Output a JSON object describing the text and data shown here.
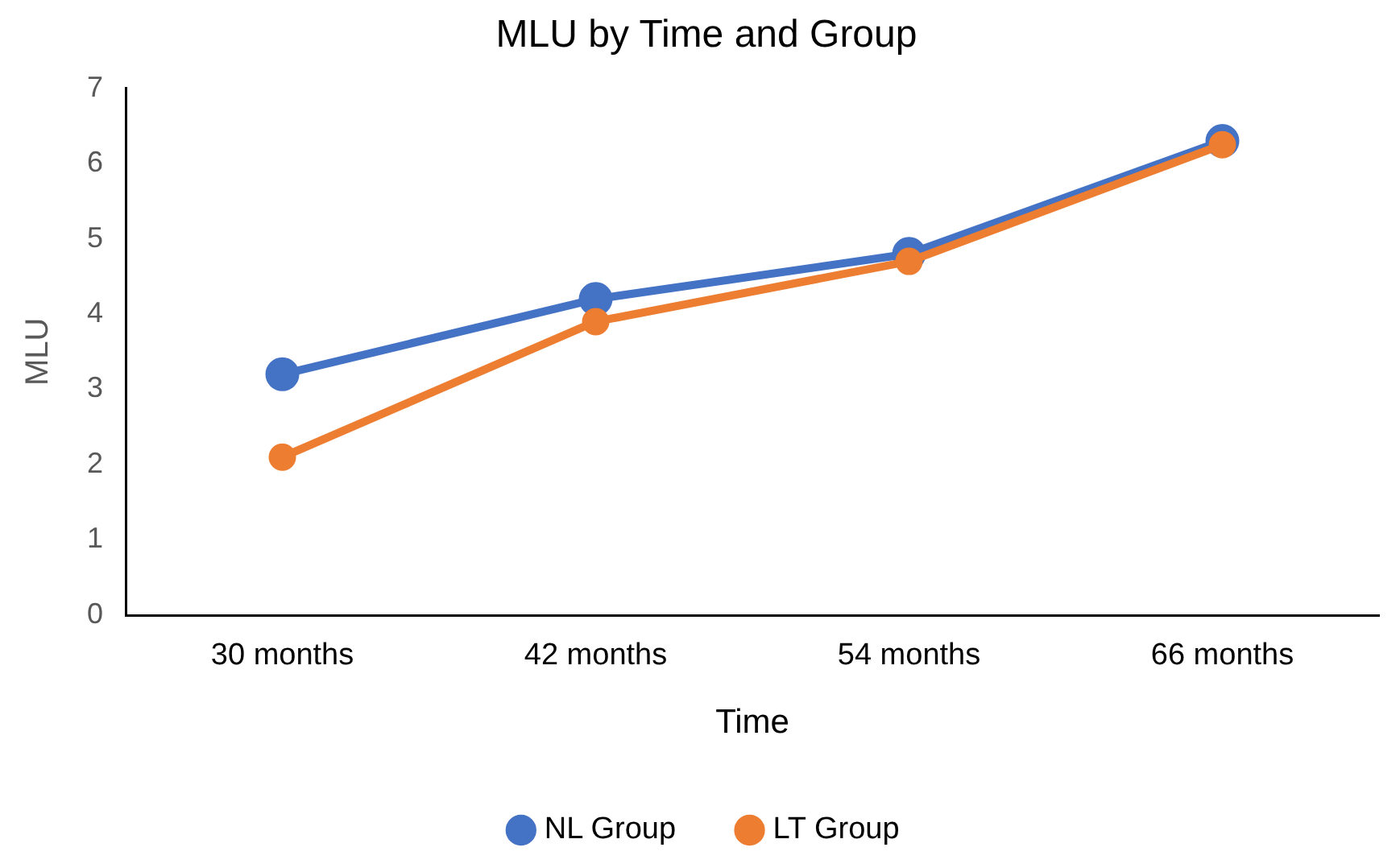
{
  "chart_data": {
    "type": "line",
    "title": "MLU by Time and Group",
    "xlabel": "Time",
    "ylabel": "MLU",
    "categories": [
      "30 months",
      "42 months",
      "54 months",
      "66 months"
    ],
    "series": [
      {
        "name": "NL Group",
        "color": "#4472c4",
        "values": [
          3.2,
          4.2,
          4.8,
          6.3
        ]
      },
      {
        "name": "LT Group",
        "color": "#ed7d31",
        "values": [
          2.1,
          3.9,
          4.7,
          6.25
        ]
      }
    ],
    "ylim": [
      0,
      7
    ],
    "yticks": [
      0,
      1,
      2,
      3,
      4,
      5,
      6,
      7
    ],
    "grid": false,
    "legend": "bottom",
    "marker": "circle",
    "line_style": "solid"
  }
}
